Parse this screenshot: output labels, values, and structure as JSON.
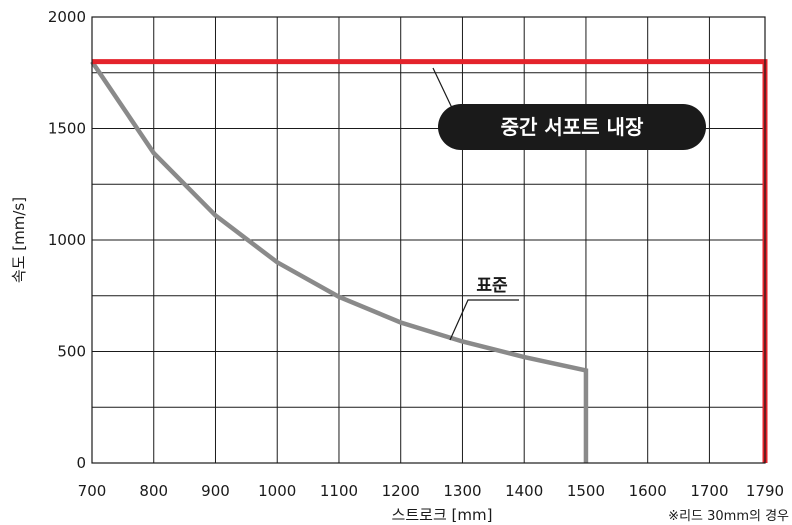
{
  "chart_data": {
    "type": "line",
    "xlabel": "스트로크 [mm]",
    "ylabel": "속도 [mm/s]",
    "xlim": [
      700,
      1790
    ],
    "ylim": [
      0,
      2000
    ],
    "x_ticks": [
      700,
      800,
      900,
      1000,
      1100,
      1200,
      1300,
      1400,
      1500,
      1600,
      1700,
      1790
    ],
    "x_tick_labels": [
      "700",
      "800",
      "900",
      "1000",
      "1100",
      "1200",
      "1300",
      "1400",
      "1500",
      "1600",
      "1700",
      "1790"
    ],
    "y_ticks": [
      0,
      500,
      1000,
      1500,
      2000
    ],
    "y_tick_labels": [
      "0",
      "500",
      "1000",
      "1500",
      "2000"
    ],
    "grid": true,
    "note": "※리드 30mm의 경우",
    "series": [
      {
        "name": "표준",
        "color": "#8a8a8a",
        "points": [
          [
            700,
            1800
          ],
          [
            800,
            1390
          ],
          [
            900,
            1110
          ],
          [
            1000,
            900
          ],
          [
            1100,
            745
          ],
          [
            1200,
            630
          ],
          [
            1300,
            545
          ],
          [
            1400,
            475
          ],
          [
            1500,
            415
          ],
          [
            1500,
            0
          ]
        ]
      },
      {
        "name": "중간 서포트 내장",
        "color": "#e4232b",
        "points": [
          [
            700,
            1800
          ],
          [
            1790,
            1800
          ],
          [
            1790,
            0
          ]
        ]
      }
    ]
  }
}
